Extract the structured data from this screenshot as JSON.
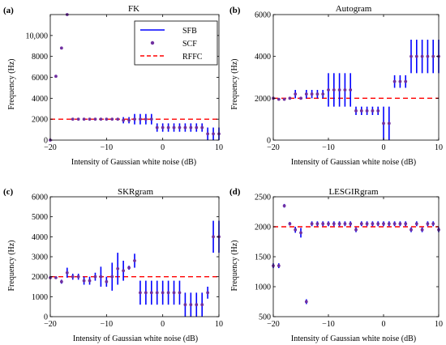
{
  "colors": {
    "sfb": "#0000FF",
    "scf": "#7030A0",
    "rffc": "#FF0000",
    "axis": "#000000"
  },
  "legend": {
    "placement": "top-right of panel (a)",
    "items": [
      "SFB",
      "SCF",
      "RFFC"
    ]
  },
  "chart_data": [
    {
      "type": "scatter",
      "panel": "(a)",
      "title": "FK",
      "xlabel": "Intensity of Gaussian white noise (dB)",
      "ylabel": "Frequency (Hz)",
      "xlim": [
        -20,
        10
      ],
      "ylim": [
        0,
        12000
      ],
      "xticks": [
        -20,
        -10,
        0,
        10
      ],
      "yticks": [
        0,
        2000,
        4000,
        6000,
        8000,
        10000
      ],
      "ytick_labels": [
        "0",
        "2000",
        "4000",
        "6000",
        "8000",
        "10,000"
      ],
      "rffc": 2000,
      "x": [
        -20,
        -19,
        -18,
        -17,
        -16,
        -15,
        -14,
        -13,
        -12,
        -11,
        -10,
        -9,
        -8,
        -7,
        -6,
        -5,
        -4,
        -3,
        -2,
        -1,
        0,
        1,
        2,
        3,
        4,
        5,
        6,
        7,
        8,
        9,
        10
      ],
      "scf": [
        0,
        6100,
        8800,
        12000,
        2000,
        2000,
        2000,
        2000,
        2000,
        2000,
        2000,
        2000,
        2000,
        1900,
        1900,
        2000,
        2000,
        2000,
        2000,
        1200,
        1200,
        1200,
        1200,
        1200,
        1200,
        1200,
        1200,
        1200,
        600,
        600,
        600
      ],
      "sfb_err": [
        0,
        0,
        0,
        0,
        0,
        0,
        0,
        0,
        0,
        0,
        0,
        0,
        0,
        300,
        300,
        500,
        500,
        500,
        500,
        400,
        400,
        400,
        400,
        400,
        400,
        400,
        400,
        400,
        600,
        600,
        600
      ]
    },
    {
      "type": "scatter",
      "panel": "(b)",
      "title": "Autogram",
      "xlabel": "Intensity of Gaussian white noise (dB)",
      "ylabel": "Frequency (Hz)",
      "xlim": [
        -20,
        10
      ],
      "ylim": [
        0,
        6000
      ],
      "xticks": [
        -20,
        -10,
        0,
        10
      ],
      "yticks": [
        0,
        2000,
        4000,
        6000
      ],
      "ytick_labels": [
        "0",
        "2000",
        "4000",
        "6000"
      ],
      "rffc": 2000,
      "x": [
        -20,
        -19,
        -18,
        -17,
        -16,
        -15,
        -14,
        -13,
        -12,
        -11,
        -10,
        -9,
        -8,
        -7,
        -6,
        -5,
        -4,
        -3,
        -2,
        -1,
        0,
        1,
        2,
        3,
        4,
        5,
        6,
        7,
        8,
        9,
        10
      ],
      "scf": [
        2000,
        1950,
        1950,
        2000,
        2200,
        2000,
        2200,
        2200,
        2200,
        2200,
        2400,
        2400,
        2400,
        2400,
        2400,
        1400,
        1400,
        1400,
        1400,
        1400,
        800,
        800,
        2800,
        2800,
        2800,
        4000,
        4000,
        4000,
        4000,
        4000,
        4000
      ],
      "sfb_err": [
        0,
        50,
        50,
        0,
        200,
        0,
        200,
        200,
        200,
        200,
        800,
        800,
        800,
        800,
        800,
        200,
        200,
        200,
        200,
        200,
        800,
        800,
        300,
        300,
        300,
        800,
        800,
        800,
        800,
        800,
        800
      ]
    },
    {
      "type": "scatter",
      "panel": "(c)",
      "title": "SKRgram",
      "xlabel": "Intensity of Gaussian white noise (dB)",
      "ylabel": "Frequency (Hz)",
      "xlim": [
        -20,
        10
      ],
      "ylim": [
        0,
        6000
      ],
      "xticks": [
        -20,
        -10,
        0,
        10
      ],
      "yticks": [
        0,
        1000,
        2000,
        3000,
        4000,
        5000,
        6000
      ],
      "ytick_labels": [
        "0",
        "1000",
        "2000",
        "3000",
        "4000",
        "5000",
        "6000"
      ],
      "rffc": 2000,
      "x": [
        -20,
        -19,
        -18,
        -17,
        -16,
        -15,
        -14,
        -13,
        -12,
        -11,
        -10,
        -9,
        -8,
        -7,
        -6,
        -5,
        -4,
        -3,
        -2,
        -1,
        0,
        1,
        2,
        3,
        4,
        5,
        6,
        7,
        8,
        9,
        10
      ],
      "scf": [
        1950,
        1950,
        1750,
        2200,
        2000,
        2000,
        1800,
        1800,
        2000,
        2000,
        1750,
        2000,
        2400,
        2300,
        2450,
        2800,
        1200,
        1200,
        1200,
        1200,
        1200,
        1200,
        1200,
        1200,
        600,
        600,
        600,
        600,
        1200,
        4000,
        4000
      ],
      "sfb_err": [
        50,
        50,
        100,
        250,
        150,
        150,
        200,
        200,
        200,
        500,
        250,
        700,
        800,
        500,
        100,
        350,
        600,
        600,
        600,
        600,
        600,
        600,
        600,
        600,
        600,
        600,
        600,
        600,
        300,
        800,
        800
      ]
    },
    {
      "type": "scatter",
      "panel": "(d)",
      "title": "LESGIRgram",
      "xlabel": "Intensity of Gaussian white noise (dB)",
      "ylabel": "Frequency (Hz)",
      "xlim": [
        -20,
        10
      ],
      "ylim": [
        500,
        2500
      ],
      "xticks": [
        -20,
        -10,
        0,
        10
      ],
      "yticks": [
        500,
        1000,
        1500,
        2000,
        2500
      ],
      "ytick_labels": [
        "500",
        "1000",
        "1500",
        "2000",
        "2500"
      ],
      "rffc": 2000,
      "x": [
        -20,
        -19,
        -18,
        -17,
        -16,
        -15,
        -14,
        -13,
        -12,
        -11,
        -10,
        -9,
        -8,
        -7,
        -6,
        -5,
        -4,
        -3,
        -2,
        -1,
        0,
        1,
        2,
        3,
        4,
        5,
        6,
        7,
        8,
        9,
        10
      ],
      "scf": [
        1350,
        1350,
        2350,
        2050,
        1950,
        1900,
        750,
        2050,
        2050,
        2050,
        2050,
        2050,
        2050,
        2050,
        2050,
        1950,
        2050,
        2050,
        2050,
        2050,
        2050,
        2050,
        2050,
        2050,
        2050,
        1950,
        2050,
        1950,
        2050,
        2050,
        1950
      ],
      "sfb_err": [
        40,
        40,
        30,
        30,
        50,
        80,
        40,
        40,
        40,
        40,
        40,
        40,
        40,
        40,
        40,
        40,
        40,
        40,
        40,
        40,
        40,
        40,
        40,
        40,
        40,
        40,
        40,
        40,
        40,
        40,
        40
      ]
    }
  ]
}
